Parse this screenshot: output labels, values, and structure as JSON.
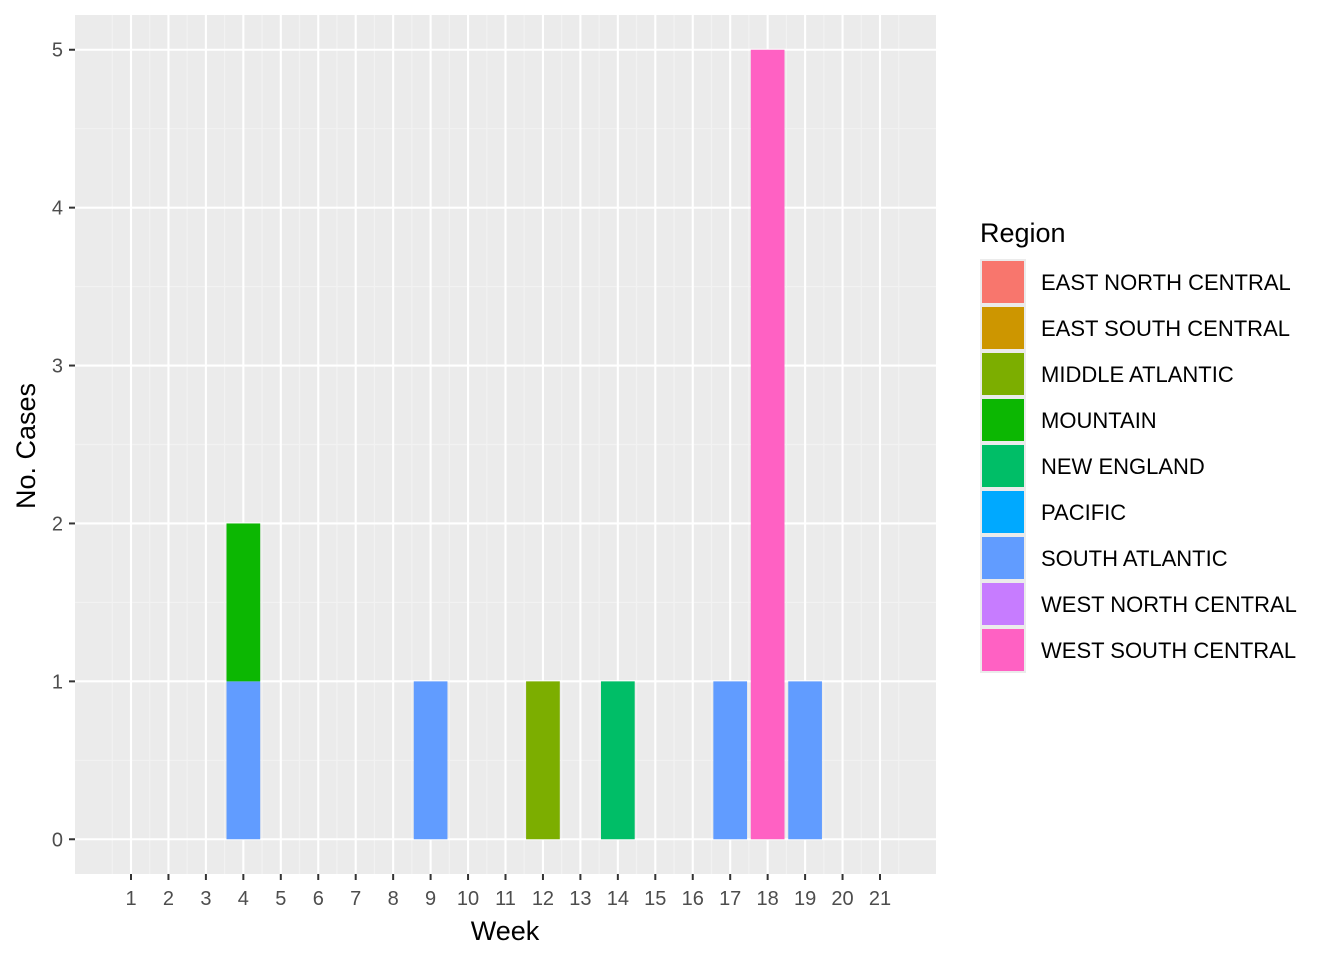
{
  "chart_data": {
    "type": "bar",
    "stacked": true,
    "xlabel": "Week",
    "ylabel": "No. Cases",
    "ylim": [
      -0.22,
      5.22
    ],
    "yticks": [
      0,
      1,
      2,
      3,
      4,
      5
    ],
    "categories": [
      "1",
      "2",
      "3",
      "4",
      "5",
      "6",
      "7",
      "8",
      "9",
      "10",
      "11",
      "12",
      "13",
      "14",
      "15",
      "16",
      "17",
      "18",
      "19",
      "20",
      "21"
    ],
    "grid": true,
    "legend": {
      "title": "Region",
      "placement": "right"
    },
    "series": [
      {
        "name": "EAST NORTH CENTRAL",
        "color": "#F8766D",
        "values": [
          0,
          0,
          0,
          0,
          0,
          0,
          0,
          0,
          0,
          0,
          0,
          0,
          0,
          0,
          0,
          0,
          0,
          0,
          0,
          0,
          0
        ]
      },
      {
        "name": "EAST SOUTH CENTRAL",
        "color": "#CD9600",
        "values": [
          0,
          0,
          0,
          0,
          0,
          0,
          0,
          0,
          0,
          0,
          0,
          0,
          0,
          0,
          0,
          0,
          0,
          0,
          0,
          0,
          0
        ]
      },
      {
        "name": "MIDDLE ATLANTIC",
        "color": "#7CAE00",
        "values": [
          0,
          0,
          0,
          0,
          0,
          0,
          0,
          0,
          0,
          0,
          0,
          1,
          0,
          0,
          0,
          0,
          0,
          0,
          0,
          0,
          0
        ]
      },
      {
        "name": "MOUNTAIN",
        "color": "#0CB702",
        "values": [
          0,
          0,
          0,
          1,
          0,
          0,
          0,
          0,
          0,
          0,
          0,
          0,
          0,
          0,
          0,
          0,
          0,
          0,
          0,
          0,
          0
        ]
      },
      {
        "name": "NEW ENGLAND",
        "color": "#00BE67",
        "values": [
          0,
          0,
          0,
          0,
          0,
          0,
          0,
          0,
          0,
          0,
          0,
          0,
          0,
          1,
          0,
          0,
          0,
          0,
          0,
          0,
          0
        ]
      },
      {
        "name": "PACIFIC",
        "color": "#00A9FF",
        "values": [
          0,
          0,
          0,
          0,
          0,
          0,
          0,
          0,
          0,
          0,
          0,
          0,
          0,
          0,
          0,
          0,
          0,
          0,
          0,
          0,
          0
        ]
      },
      {
        "name": "SOUTH ATLANTIC",
        "color": "#619CFF",
        "values": [
          0,
          0,
          0,
          1,
          0,
          0,
          0,
          0,
          1,
          0,
          0,
          0,
          0,
          0,
          0,
          0,
          1,
          0,
          1,
          0,
          0
        ]
      },
      {
        "name": "WEST NORTH CENTRAL",
        "color": "#C77CFF",
        "values": [
          0,
          0,
          0,
          0,
          0,
          0,
          0,
          0,
          0,
          0,
          0,
          0,
          0,
          0,
          0,
          0,
          0,
          0,
          0,
          0,
          0
        ]
      },
      {
        "name": "WEST SOUTH CENTRAL",
        "color": "#FF61C3",
        "values": [
          0,
          0,
          0,
          0,
          0,
          0,
          0,
          0,
          0,
          0,
          0,
          0,
          0,
          0,
          0,
          0,
          0,
          5,
          0,
          0,
          0
        ]
      }
    ]
  },
  "colors": {
    "panel_background": "#EBEBEB",
    "grid_major": "#FFFFFF",
    "grid_minor": "#F2F2F2",
    "tick_text": "#4D4D4D"
  }
}
